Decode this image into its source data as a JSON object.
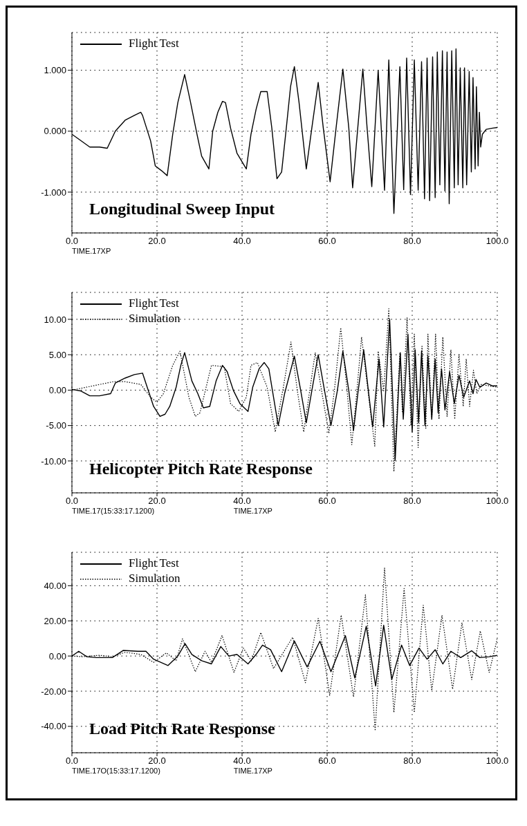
{
  "chart_data": [
    {
      "type": "line",
      "title": "Longitudinal Sweep Input",
      "annotations": [
        "TIME.17XP"
      ],
      "xlim": [
        0,
        100
      ],
      "xticks": [
        {
          "value": 0,
          "label": "0.0"
        },
        {
          "value": 20,
          "label": "20.0"
        },
        {
          "value": 40,
          "label": "40.0"
        },
        {
          "value": 60,
          "label": "60.0"
        },
        {
          "value": 80,
          "label": "80.0"
        },
        {
          "value": 100,
          "label": "100.0"
        }
      ],
      "ylim": [
        -1.67,
        1.62
      ],
      "yticks": [
        {
          "value": -1,
          "label": "-1.000"
        },
        {
          "value": 0,
          "label": "0.000"
        },
        {
          "value": 1,
          "label": "1.000"
        }
      ],
      "grid": true,
      "legend": "top left",
      "series": [
        {
          "name": "Flight Test",
          "color": "#000000",
          "line_style": "solid",
          "x": [
            0,
            2,
            4.2,
            6.5,
            8.3,
            10.2,
            12.5,
            14.7,
            16.2,
            16.6,
            18.5,
            19.6,
            21.1,
            22.4,
            23.7,
            24.9,
            26.5,
            27.9,
            29.4,
            30.5,
            32.2,
            33.1,
            34.3,
            35.4,
            36.1,
            37.3,
            38.8,
            41,
            42.1,
            43.3,
            44.4,
            45.9,
            47,
            48.2,
            49.3,
            50.4,
            51.4,
            52.3,
            53.4,
            55.1,
            56.4,
            57.9,
            59.1,
            60.7,
            62.1,
            63.7,
            65.1,
            66,
            67.2,
            68.4,
            69.4,
            70.5,
            72,
            73.5,
            74.5,
            75.7,
            77.1,
            78,
            78.7,
            79.6,
            80.5,
            81.4,
            82.2,
            82.9,
            83.5,
            84.1,
            84.8,
            85.4,
            85.9,
            86.5,
            87.1,
            87.7,
            88.2,
            88.7,
            89.3,
            89.9,
            90.3,
            90.8,
            91.3,
            91.9,
            92.3,
            92.8,
            93.4,
            93.9,
            94.3,
            94.8,
            95.1,
            95.5,
            95.8,
            96.1,
            96.5,
            97.4,
            98.9,
            100
          ],
          "values": [
            -0.05,
            -0.15,
            -0.26,
            -0.26,
            -0.28,
            0,
            0.18,
            0.26,
            0.31,
            0.26,
            -0.16,
            -0.57,
            -0.65,
            -0.73,
            -0.05,
            0.47,
            0.93,
            0.47,
            -0.05,
            -0.41,
            -0.62,
            0,
            0.31,
            0.49,
            0.47,
            0.05,
            -0.36,
            -0.62,
            -0.05,
            0.36,
            0.65,
            0.65,
            0.05,
            -0.78,
            -0.67,
            0.05,
            0.73,
            1.06,
            0.47,
            -0.62,
            0.05,
            0.8,
            0.05,
            -0.83,
            0.05,
            1.02,
            0.05,
            -0.93,
            0.05,
            1.02,
            0.05,
            -0.91,
            1,
            -0.97,
            1.17,
            -1.35,
            1.06,
            -0.96,
            1.2,
            -1.04,
            1.17,
            -0.97,
            1.14,
            -1.11,
            1.2,
            -1.14,
            1.22,
            -1.09,
            1.3,
            -0.88,
            1.32,
            -0.98,
            1.3,
            -1.19,
            1.32,
            -0.93,
            1.35,
            -0.88,
            1.04,
            -0.93,
            1.04,
            -0.88,
            0.98,
            -0.67,
            0.88,
            -0.62,
            0.73,
            -0.57,
            0.31,
            -0.26,
            -0.05,
            0.03,
            0.05,
            0.06
          ]
        }
      ]
    },
    {
      "type": "line",
      "title": "Helicopter Pitch Rate Response",
      "annotations": [
        "TIME.17(15:33:17.1200)",
        "TIME.17XP"
      ],
      "xlim": [
        0,
        100
      ],
      "xticks": [
        {
          "value": 0,
          "label": "0.0"
        },
        {
          "value": 20,
          "label": "20.0"
        },
        {
          "value": 40,
          "label": "40.0"
        },
        {
          "value": 60,
          "label": "60.0"
        },
        {
          "value": 80,
          "label": "80.0"
        },
        {
          "value": 100,
          "label": "100.0"
        }
      ],
      "ylim": [
        -14.5,
        13.8
      ],
      "yticks": [
        {
          "value": -10,
          "label": "-10.00"
        },
        {
          "value": -5,
          "label": "-5.00"
        },
        {
          "value": 0,
          "label": "0.00"
        },
        {
          "value": 5,
          "label": "5.00"
        },
        {
          "value": 10,
          "label": "10.00"
        }
      ],
      "grid": true,
      "legend": "top left",
      "series": [
        {
          "name": "Flight Test",
          "color": "#000000",
          "line_style": "solid",
          "x": [
            0,
            2,
            4.2,
            6.5,
            9.1,
            10.2,
            12.5,
            14.7,
            16.6,
            17.7,
            19.2,
            20.7,
            21.9,
            23,
            24.5,
            25.6,
            26.5,
            28.2,
            29.6,
            30.9,
            32.4,
            33.9,
            35.4,
            36.5,
            38,
            39.5,
            41.4,
            42.5,
            44,
            45.2,
            46.3,
            48.5,
            50,
            52.3,
            53.8,
            55.1,
            56.4,
            57.9,
            59.4,
            60.9,
            62.4,
            63.7,
            65.1,
            66.2,
            67.3,
            68.6,
            69.7,
            70.7,
            72.2,
            73.3,
            74.7,
            76,
            77.2,
            77.9,
            79,
            80,
            80.7,
            81.5,
            82.2,
            83,
            83.7,
            84.6,
            85.4,
            86.1,
            86.9,
            87.7,
            88.8,
            89.9,
            91,
            92.1,
            93.5,
            94.3,
            95,
            95.9,
            97.4,
            98.9,
            100
          ],
          "values": [
            0.1,
            -0.1,
            -0.8,
            -0.8,
            -0.5,
            1,
            1.7,
            2.2,
            2.4,
            0.4,
            -2.3,
            -3.7,
            -3.4,
            -2.3,
            0.4,
            3.5,
            5.3,
            1.3,
            -0.5,
            -2.5,
            -2.3,
            1.3,
            3.5,
            2.6,
            -0.1,
            -1.9,
            -3,
            0.4,
            3,
            3.9,
            3,
            -5,
            -0.5,
            4.8,
            -0.1,
            -4.6,
            -0.1,
            5,
            -0.1,
            -5,
            -0.1,
            5.5,
            -0.1,
            -5.7,
            -0.1,
            5.7,
            -0.1,
            -5.2,
            4.4,
            -5.2,
            10,
            -9.9,
            5.3,
            -4.1,
            7.9,
            -5.9,
            5.7,
            -4.6,
            5.5,
            -5,
            4.8,
            -4.1,
            4.4,
            -3.2,
            3,
            -2.8,
            2.6,
            -1.9,
            2.1,
            -1,
            1.3,
            -0.5,
            1.5,
            0.4,
            1,
            0.6,
            0.6
          ]
        },
        {
          "name": "Simulation",
          "color": "#000000",
          "line_style": "dotted",
          "x": [
            0,
            9.8,
            12.5,
            16.2,
            18.5,
            20,
            21.5,
            23.7,
            25.4,
            27.5,
            29,
            30.1,
            32.8,
            35.8,
            37.3,
            39.2,
            41,
            42.1,
            43.6,
            45.9,
            47.8,
            49.7,
            51.5,
            53,
            54.5,
            55.9,
            57.2,
            58.7,
            60.4,
            61.7,
            63.2,
            64.7,
            65.8,
            67,
            68.1,
            69.6,
            71.2,
            72,
            73.3,
            74.5,
            75.7,
            77.1,
            77.7,
            78.8,
            79.7,
            80.5,
            81.4,
            82.3,
            83.2,
            83.7,
            84.6,
            85.5,
            86.3,
            87.2,
            88.2,
            89.1,
            90,
            91,
            92,
            92.7,
            93.5,
            94.4,
            95.2,
            96.2,
            98.1,
            100
          ],
          "values": [
            0,
            1.2,
            1.2,
            0.8,
            -1,
            -1.7,
            -0.5,
            3.5,
            5.5,
            -1,
            -3.7,
            -3.2,
            3.5,
            3.3,
            -1.9,
            -3,
            -1,
            3.5,
            3.9,
            0.4,
            -5.9,
            0.4,
            6.8,
            -0.1,
            -5.9,
            -0.1,
            5.3,
            -0.1,
            -6.1,
            -0.1,
            8.8,
            -0.1,
            -7.7,
            -0.1,
            7.5,
            -0.1,
            -7.9,
            5.5,
            -0.1,
            11.5,
            -11.5,
            5.3,
            -3.2,
            10.2,
            -5,
            7.9,
            -8.1,
            6.2,
            -5.4,
            7.9,
            -4.1,
            7.9,
            -4.1,
            7.5,
            -3.7,
            5.7,
            -4.1,
            5,
            -2.3,
            4.4,
            -2.3,
            2.8,
            -0.5,
            0.8,
            0.6,
            0.4
          ]
        }
      ]
    },
    {
      "type": "line",
      "title": "Load Pitch Rate Response",
      "annotations": [
        "TIME.17O(15:33:17.1200)",
        "TIME.17XP"
      ],
      "xlim": [
        0,
        100
      ],
      "xticks": [
        {
          "value": 0,
          "label": "0.0"
        },
        {
          "value": 20,
          "label": "20.0"
        },
        {
          "value": 40,
          "label": "40.0"
        },
        {
          "value": 60,
          "label": "60.0"
        },
        {
          "value": 80,
          "label": "80.0"
        },
        {
          "value": 100,
          "label": "100.0"
        }
      ],
      "ylim": [
        -55,
        59
      ],
      "yticks": [
        {
          "value": -40,
          "label": "-40.00"
        },
        {
          "value": -20,
          "label": "-20.00"
        },
        {
          "value": 0,
          "label": "0.00"
        },
        {
          "value": 20,
          "label": "20.00"
        },
        {
          "value": 40,
          "label": "40.00"
        }
      ],
      "grid": true,
      "legend": "top left",
      "series": [
        {
          "name": "Flight Test",
          "color": "#000000",
          "line_style": "solid",
          "x": [
            0,
            1.6,
            3.5,
            5.7,
            9.5,
            12.1,
            15.5,
            17.4,
            19.2,
            22.6,
            24.9,
            26.6,
            28.2,
            30.5,
            32.8,
            35,
            36.9,
            38.8,
            41.4,
            43.3,
            44.8,
            46.7,
            49.3,
            52.3,
            55.3,
            58.3,
            60.9,
            64.3,
            66.5,
            69.2,
            71.4,
            73.3,
            75.2,
            77.5,
            79.4,
            81.6,
            83.5,
            85.4,
            87.2,
            89.1,
            91.4,
            94,
            95.9,
            98.1,
            100
          ],
          "values": [
            0,
            2.7,
            -0.4,
            -0.9,
            -0.9,
            3.2,
            2.7,
            2.7,
            -1.8,
            -5.4,
            0,
            7.1,
            0.9,
            -2.7,
            -4.5,
            5.4,
            0,
            0.9,
            -4.5,
            0.9,
            6.2,
            3.6,
            -8.9,
            8.6,
            -6.2,
            8.4,
            -8.9,
            11.6,
            -12.5,
            17,
            -17,
            17.5,
            -13.4,
            6.2,
            -5.4,
            4.5,
            -1.8,
            3.6,
            -4.5,
            2.7,
            -0.9,
            3,
            -0.9,
            -0.4,
            0.4
          ]
        },
        {
          "name": "Simulation",
          "color": "#000000",
          "line_style": "dotted",
          "x": [
            0,
            2.3,
            6.5,
            9.5,
            12.5,
            16.2,
            19.2,
            22.2,
            24.5,
            26,
            29,
            31.3,
            32.8,
            35.3,
            38.1,
            40.3,
            42.2,
            44.4,
            47.4,
            51.9,
            54.9,
            57.9,
            60.6,
            63.3,
            66.2,
            69,
            71.3,
            73.5,
            75.7,
            78.1,
            80.5,
            82.6,
            84.6,
            87,
            89.5,
            91.7,
            94,
            96,
            98.1,
            100
          ],
          "values": [
            0,
            -0.4,
            0.4,
            -0.4,
            2.1,
            0.9,
            -3.6,
            1.8,
            -2.7,
            9.8,
            -8.9,
            2.7,
            -3.6,
            11.6,
            -9.3,
            4.5,
            -2.7,
            13.4,
            -7.1,
            10.7,
            -15.2,
            21.4,
            -22.3,
            23.2,
            -23.2,
            34.8,
            -42.5,
            50,
            -32.1,
            38.4,
            -32.1,
            28.9,
            -19.6,
            23.2,
            -18.8,
            18.8,
            -13.4,
            14.3,
            -9.3,
            9.8
          ]
        }
      ]
    }
  ]
}
